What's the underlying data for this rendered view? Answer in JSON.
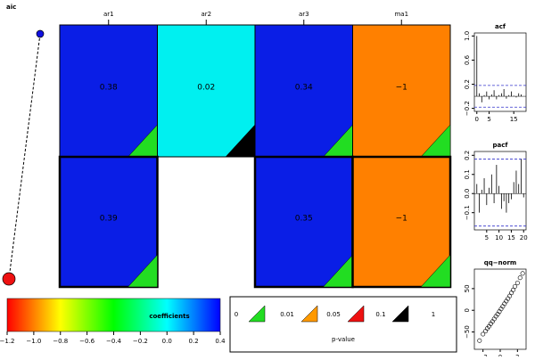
{
  "aic": {
    "label": "aic"
  },
  "coef_grid": {
    "columns": [
      "ar1",
      "ar2",
      "ar3",
      "ma1"
    ],
    "rows": [
      {
        "aic_color": "#1010e0",
        "thick_border": false,
        "cells": [
          {
            "label": "0.38",
            "color": "#0a1ee6",
            "p_color": "#22dd22"
          },
          {
            "label": "0.02",
            "color": "#00f0f0",
            "p_color": "#000000"
          },
          {
            "label": "0.34",
            "color": "#0a1ee6",
            "p_color": "#22dd22"
          },
          {
            "label": "−1",
            "color": "#ff8000",
            "p_color": "#22dd22"
          }
        ]
      },
      {
        "aic_color": "#ee1111",
        "thick_border": true,
        "cells": [
          {
            "label": "0.39",
            "color": "#0a1ee6",
            "p_color": "#22dd22"
          },
          null,
          {
            "label": "0.35",
            "color": "#0a1ee6",
            "p_color": "#22dd22"
          },
          {
            "label": "−1",
            "color": "#ff8000",
            "p_color": "#22dd22"
          }
        ]
      }
    ]
  },
  "colorbar": {
    "title": "coefficients",
    "xlim": [
      -1.2,
      0.4
    ],
    "colors": [
      "#ff0000",
      "#ffff00",
      "#00ff00",
      "#00ffff",
      "#0000ff"
    ],
    "xticks": [
      {
        "value": -1.2,
        "label": "−1.2"
      },
      {
        "value": -1.0,
        "label": "−1.0"
      },
      {
        "value": -0.8,
        "label": "−0.8"
      },
      {
        "value": -0.6,
        "label": "−0.6"
      },
      {
        "value": -0.4,
        "label": "−0.4"
      },
      {
        "value": -0.2,
        "label": "−0.2"
      },
      {
        "value": 0.0,
        "label": "0.0"
      },
      {
        "value": 0.2,
        "label": "0.2"
      },
      {
        "value": 0.4,
        "label": "0.4"
      }
    ]
  },
  "pvalue_legend": {
    "title": "p-value",
    "labels": [
      "0",
      "0.01",
      "0.05",
      "0.1",
      "1"
    ],
    "colors": [
      "#22dd22",
      "#ff9900",
      "#ee1111",
      "#000000"
    ]
  },
  "acf": {
    "type": "acf",
    "title": "acf",
    "xlim": [
      -1,
      20
    ],
    "ylim": [
      -0.25,
      1.05
    ],
    "band": [
      -0.18,
      0.18
    ],
    "x": [
      0,
      1,
      2,
      3,
      4,
      5,
      6,
      7,
      8,
      9,
      10,
      11,
      12,
      13,
      14,
      15,
      16,
      17,
      18,
      19
    ],
    "values": [
      1,
      0.05,
      -0.1,
      0.02,
      0.08,
      -0.05,
      0.03,
      0.1,
      -0.05,
      0.02,
      0.05,
      0.12,
      -0.04,
      0.02,
      0.08,
      0.01,
      -0.02,
      0.05,
      0.03,
      0.0
    ],
    "xticks": [
      0,
      5,
      15
    ],
    "yticks": [
      {
        "value": 1,
        "label": "1.0"
      },
      0.6,
      0.2,
      {
        "value": -0.2,
        "label": "−0.2"
      }
    ]
  },
  "pacf": {
    "type": "acf",
    "title": "pacf",
    "xlim": [
      0,
      21
    ],
    "ylim": [
      -0.19,
      0.22
    ],
    "band": [
      -0.17,
      0.18
    ],
    "x": [
      1,
      2,
      3,
      4,
      5,
      6,
      7,
      8,
      9,
      10,
      11,
      12,
      13,
      14,
      15,
      16,
      17,
      18,
      19,
      20
    ],
    "values": [
      0.05,
      -0.1,
      0.02,
      0.08,
      -0.06,
      0.03,
      0.1,
      -0.05,
      0.15,
      0.04,
      -0.08,
      -0.04,
      -0.1,
      -0.05,
      -0.03,
      0.06,
      0.12,
      0.05,
      0.18,
      -0.02
    ],
    "xticks": [
      5,
      10,
      15,
      20
    ],
    "yticks": [
      0.2,
      0.1,
      {
        "value": 0,
        "label": "0.0"
      },
      {
        "value": -0.1,
        "label": "−0.1"
      }
    ]
  },
  "qqnorm": {
    "type": "qq",
    "title": "qq−norm",
    "xlim": [
      -3,
      3
    ],
    "ylim": [
      -90,
      95
    ],
    "x": [
      -2.4,
      -2.0,
      -1.7,
      -1.5,
      -1.3,
      -1.1,
      -0.9,
      -0.7,
      -0.5,
      -0.3,
      -0.1,
      0.1,
      0.3,
      0.5,
      0.7,
      0.9,
      1.1,
      1.3,
      1.5,
      1.7,
      2.0,
      2.3,
      2.6
    ],
    "values": [
      -70,
      -55,
      -48,
      -42,
      -37,
      -31,
      -26,
      -20,
      -14,
      -9,
      -3,
      3,
      9,
      15,
      21,
      27,
      33,
      40,
      47,
      55,
      63,
      75,
      85
    ],
    "xticks": [
      {
        "value": -2,
        "label": "−2"
      },
      0,
      2
    ],
    "yticks": [
      {
        "value": -50,
        "label": "−50"
      },
      0,
      50
    ]
  }
}
